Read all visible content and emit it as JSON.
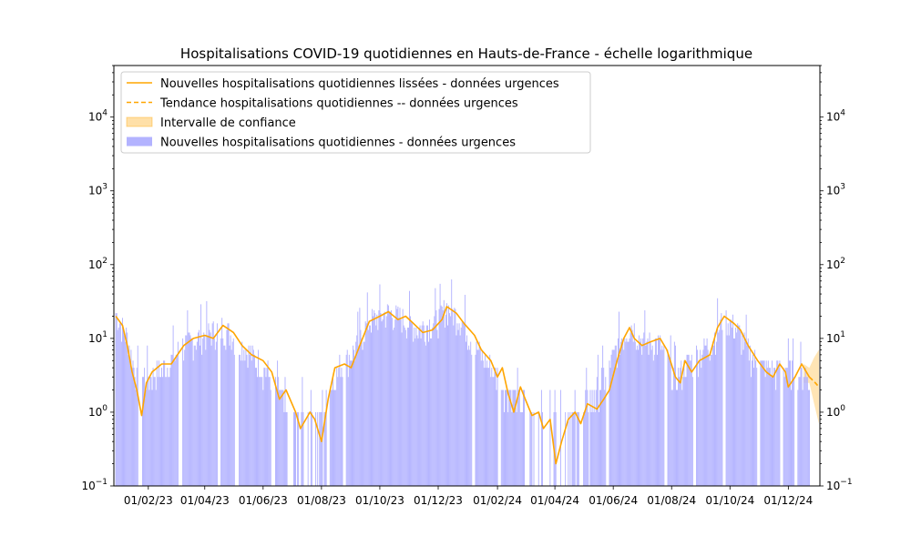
{
  "chart_data": {
    "type": "bar",
    "title": "Hospitalisations COVID-19 quotidiennes en Hauts-de-France - échelle logarithmique",
    "xlabel": "",
    "ylabel": "",
    "y_scale": "log",
    "ylim": [
      0.1,
      50000
    ],
    "xlim": [
      "2022-12-27",
      "2025-01-03"
    ],
    "x_tick_labels": [
      {
        "date": "2023-02-01",
        "label": "01/02/23"
      },
      {
        "date": "2023-04-01",
        "label": "01/04/23"
      },
      {
        "date": "2023-06-01",
        "label": "01/06/23"
      },
      {
        "date": "2023-08-01",
        "label": "01/08/23"
      },
      {
        "date": "2023-10-01",
        "label": "01/10/23"
      },
      {
        "date": "2023-12-01",
        "label": "01/12/23"
      },
      {
        "date": "2024-02-01",
        "label": "01/02/24"
      },
      {
        "date": "2024-04-01",
        "label": "01/04/24"
      },
      {
        "date": "2024-06-01",
        "label": "01/06/24"
      },
      {
        "date": "2024-08-01",
        "label": "01/08/24"
      },
      {
        "date": "2024-10-01",
        "label": "01/10/24"
      },
      {
        "date": "2024-12-01",
        "label": "01/12/24"
      }
    ],
    "y_ticks": [
      {
        "value": 1,
        "base": "10",
        "exp": "0"
      },
      {
        "value": 10,
        "base": "10",
        "exp": "1"
      },
      {
        "value": 100,
        "base": "10",
        "exp": "2"
      },
      {
        "value": 1000,
        "base": "10",
        "exp": "3"
      },
      {
        "value": 10000,
        "base": "10",
        "exp": "4"
      }
    ],
    "grid": false,
    "legend_position": "top-left",
    "legend": [
      {
        "label": "Nouvelles hospitalisations quotidiennes lissées - données urgences",
        "kind": "line",
        "color": "#ffa500"
      },
      {
        "label": "Tendance hospitalisations quotidiennes -- données urgences",
        "kind": "dashed",
        "color": "#ffa500"
      },
      {
        "label": "Intervalle de confiance",
        "kind": "band",
        "color": "#ffa500"
      },
      {
        "label": "Nouvelles hospitalisations quotidiennes - données urgences",
        "kind": "bar",
        "color": "#b3b3ff"
      }
    ],
    "colors": {
      "bars": "#b3b3ff",
      "line": "#ffa500",
      "band": "#ffe0a8"
    },
    "bar_series": {
      "start": "2022-12-29",
      "step_days": 1,
      "name": "Nouvelles hospitalisations quotidiennes - données urgences",
      "control_points": [
        [
          "2022-12-29",
          22
        ],
        [
          "2023-01-10",
          10
        ],
        [
          "2023-01-20",
          3
        ],
        [
          "2023-02-05",
          3
        ],
        [
          "2023-02-20",
          4
        ],
        [
          "2023-03-10",
          8
        ],
        [
          "2023-04-01",
          11
        ],
        [
          "2023-04-20",
          14
        ],
        [
          "2023-05-10",
          8
        ],
        [
          "2023-05-25",
          5
        ],
        [
          "2023-06-10",
          3
        ],
        [
          "2023-06-25",
          1
        ],
        [
          "2023-07-10",
          1
        ],
        [
          "2023-07-25",
          0.7
        ],
        [
          "2023-08-05",
          1.5
        ],
        [
          "2023-08-20",
          4
        ],
        [
          "2023-09-05",
          7
        ],
        [
          "2023-09-20",
          17
        ],
        [
          "2023-10-10",
          22
        ],
        [
          "2023-10-25",
          18
        ],
        [
          "2023-11-10",
          13
        ],
        [
          "2023-12-01",
          18
        ],
        [
          "2023-12-10",
          26
        ],
        [
          "2023-12-25",
          18
        ],
        [
          "2024-01-10",
          7
        ],
        [
          "2024-01-25",
          4
        ],
        [
          "2024-02-10",
          2
        ],
        [
          "2024-02-25",
          1.5
        ],
        [
          "2024-03-10",
          1
        ],
        [
          "2024-03-25",
          0.8
        ],
        [
          "2024-04-05",
          0.3
        ],
        [
          "2024-04-15",
          0.6
        ],
        [
          "2024-04-25",
          1
        ],
        [
          "2024-05-10",
          1.5
        ],
        [
          "2024-05-25",
          3.5
        ],
        [
          "2024-06-10",
          10
        ],
        [
          "2024-06-20",
          15
        ],
        [
          "2024-07-01",
          9
        ],
        [
          "2024-07-20",
          8
        ],
        [
          "2024-08-05",
          3
        ],
        [
          "2024-08-20",
          5
        ],
        [
          "2024-09-10",
          8
        ],
        [
          "2024-09-25",
          19
        ],
        [
          "2024-10-10",
          12
        ],
        [
          "2024-10-25",
          5
        ],
        [
          "2024-11-15",
          3.5
        ],
        [
          "2024-11-25",
          4
        ],
        [
          "2024-12-10",
          3.5
        ],
        [
          "2024-12-23",
          3
        ]
      ],
      "zero_gaps": [
        [
          "2023-01-22",
          "2023-01-25"
        ],
        [
          "2023-03-05",
          "2023-03-08"
        ],
        [
          "2023-04-15",
          "2023-04-17"
        ],
        [
          "2023-05-03",
          "2023-05-06"
        ],
        [
          "2023-06-10",
          "2023-06-13"
        ],
        [
          "2023-06-29",
          "2023-07-02"
        ],
        [
          "2023-07-15",
          "2023-07-17"
        ],
        [
          "2023-08-07",
          "2023-08-09"
        ],
        [
          "2023-08-24",
          "2023-08-26"
        ],
        [
          "2024-01-06",
          "2024-01-08"
        ],
        [
          "2024-02-02",
          "2024-02-04"
        ],
        [
          "2024-03-01",
          "2024-03-05"
        ],
        [
          "2024-03-22",
          "2024-03-26"
        ],
        [
          "2024-04-08",
          "2024-04-11"
        ],
        [
          "2024-04-28",
          "2024-04-30"
        ],
        [
          "2024-05-25",
          "2024-05-27"
        ],
        [
          "2024-07-25",
          "2024-07-27"
        ],
        [
          "2024-08-24",
          "2024-08-26"
        ],
        [
          "2024-09-24",
          "2024-09-26"
        ],
        [
          "2024-10-30",
          "2024-11-01"
        ],
        [
          "2024-11-23",
          "2024-11-25"
        ],
        [
          "2024-12-08",
          "2024-12-10"
        ]
      ]
    },
    "smoothed_series": {
      "name": "Nouvelles hospitalisations quotidiennes lissées - données urgences",
      "points": [
        [
          "2022-12-29",
          20
        ],
        [
          "2023-01-05",
          15
        ],
        [
          "2023-01-10",
          8
        ],
        [
          "2023-01-15",
          3.5
        ],
        [
          "2023-01-20",
          2
        ],
        [
          "2023-01-25",
          0.9
        ],
        [
          "2023-01-30",
          2.5
        ],
        [
          "2023-02-05",
          3.5
        ],
        [
          "2023-02-15",
          4.5
        ],
        [
          "2023-02-25",
          4.5
        ],
        [
          "2023-03-10",
          8
        ],
        [
          "2023-03-20",
          10
        ],
        [
          "2023-04-01",
          11
        ],
        [
          "2023-04-10",
          10
        ],
        [
          "2023-04-20",
          15
        ],
        [
          "2023-05-01",
          12
        ],
        [
          "2023-05-10",
          8
        ],
        [
          "2023-05-20",
          6
        ],
        [
          "2023-06-01",
          5
        ],
        [
          "2023-06-10",
          3.5
        ],
        [
          "2023-06-18",
          1.5
        ],
        [
          "2023-06-25",
          2
        ],
        [
          "2023-07-05",
          1
        ],
        [
          "2023-07-10",
          0.6
        ],
        [
          "2023-07-20",
          1
        ],
        [
          "2023-07-25",
          0.8
        ],
        [
          "2023-08-01",
          0.4
        ],
        [
          "2023-08-08",
          1.5
        ],
        [
          "2023-08-15",
          4
        ],
        [
          "2023-08-25",
          4.5
        ],
        [
          "2023-09-01",
          4
        ],
        [
          "2023-09-10",
          8
        ],
        [
          "2023-09-20",
          17
        ],
        [
          "2023-10-01",
          20
        ],
        [
          "2023-10-10",
          23
        ],
        [
          "2023-10-20",
          18
        ],
        [
          "2023-10-28",
          20
        ],
        [
          "2023-11-05",
          16
        ],
        [
          "2023-11-15",
          12
        ],
        [
          "2023-11-25",
          13
        ],
        [
          "2023-12-05",
          18
        ],
        [
          "2023-12-10",
          27
        ],
        [
          "2023-12-20",
          22
        ],
        [
          "2023-12-28",
          16
        ],
        [
          "2024-01-08",
          11
        ],
        [
          "2024-01-15",
          7
        ],
        [
          "2024-01-25",
          5
        ],
        [
          "2024-02-01",
          3
        ],
        [
          "2024-02-06",
          4
        ],
        [
          "2024-02-12",
          1.8
        ],
        [
          "2024-02-18",
          1
        ],
        [
          "2024-02-25",
          2.2
        ],
        [
          "2024-03-01",
          1.5
        ],
        [
          "2024-03-08",
          0.9
        ],
        [
          "2024-03-15",
          1
        ],
        [
          "2024-03-20",
          0.6
        ],
        [
          "2024-03-27",
          0.8
        ],
        [
          "2024-04-02",
          0.2
        ],
        [
          "2024-04-08",
          0.4
        ],
        [
          "2024-04-15",
          0.8
        ],
        [
          "2024-04-22",
          1
        ],
        [
          "2024-04-28",
          0.7
        ],
        [
          "2024-05-05",
          1.3
        ],
        [
          "2024-05-15",
          1.1
        ],
        [
          "2024-05-22",
          1.5
        ],
        [
          "2024-05-28",
          2
        ],
        [
          "2024-06-05",
          5
        ],
        [
          "2024-06-12",
          10
        ],
        [
          "2024-06-18",
          14
        ],
        [
          "2024-06-23",
          10
        ],
        [
          "2024-07-01",
          8
        ],
        [
          "2024-07-10",
          9
        ],
        [
          "2024-07-20",
          10
        ],
        [
          "2024-07-27",
          7
        ],
        [
          "2024-08-05",
          3
        ],
        [
          "2024-08-10",
          2.5
        ],
        [
          "2024-08-15",
          5
        ],
        [
          "2024-08-22",
          3.5
        ],
        [
          "2024-08-30",
          5
        ],
        [
          "2024-09-10",
          6
        ],
        [
          "2024-09-18",
          14
        ],
        [
          "2024-09-25",
          20
        ],
        [
          "2024-10-05",
          16
        ],
        [
          "2024-10-12",
          13
        ],
        [
          "2024-10-20",
          8
        ],
        [
          "2024-10-30",
          5
        ],
        [
          "2024-11-08",
          3.5
        ],
        [
          "2024-11-15",
          3
        ],
        [
          "2024-11-22",
          4.5
        ],
        [
          "2024-11-28",
          3.5
        ],
        [
          "2024-12-01",
          2.2
        ],
        [
          "2024-12-08",
          3
        ],
        [
          "2024-12-15",
          4.5
        ],
        [
          "2024-12-23",
          3
        ]
      ]
    },
    "trend_series": {
      "name": "Tendance hospitalisations quotidiennes -- données urgences",
      "points": [
        [
          "2024-12-23",
          3
        ],
        [
          "2024-12-28",
          2.6
        ],
        [
          "2025-01-02",
          2.2
        ]
      ],
      "confidence_interval": {
        "name": "Intervalle de confiance",
        "upper": [
          [
            "2024-12-17",
            4.5
          ],
          [
            "2024-12-23",
            4
          ],
          [
            "2024-12-28",
            5.5
          ],
          [
            "2025-01-02",
            7
          ]
        ],
        "lower": [
          [
            "2024-12-17",
            2.5
          ],
          [
            "2024-12-23",
            2.5
          ],
          [
            "2024-12-28",
            1.3
          ],
          [
            "2025-01-02",
            0.7
          ]
        ]
      }
    }
  }
}
